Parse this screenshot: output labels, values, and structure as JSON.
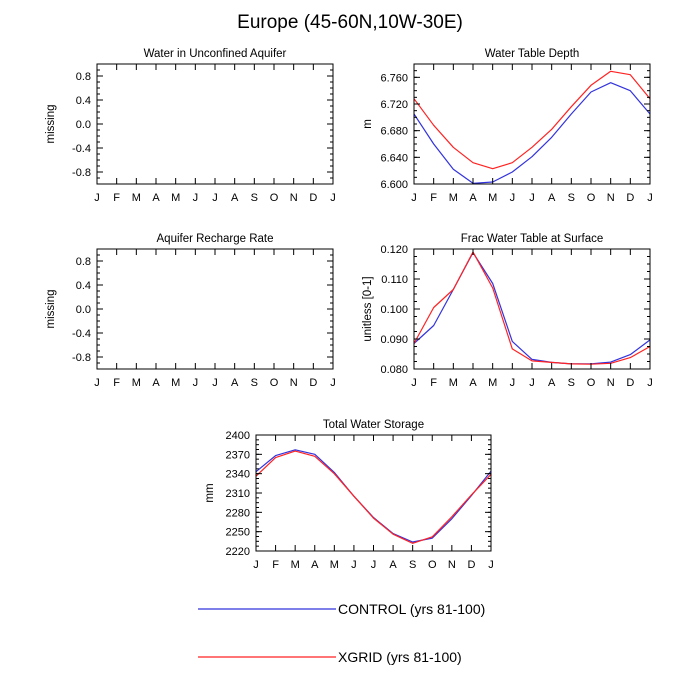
{
  "figure_title": "Europe (45-60N,10W-30E)",
  "colors": {
    "control": "#3333dd",
    "xgrid": "#ff2222",
    "axis": "#000000"
  },
  "legend": [
    {
      "key": "control",
      "label": "CONTROL (yrs 81-100)"
    },
    {
      "key": "xgrid",
      "label": "XGRID (yrs 81-100)"
    }
  ],
  "chart_data": [
    {
      "id": "aquifer-water",
      "type": "line",
      "title": "Water in Unconfined Aquifer",
      "ylabel": "missing",
      "categories": [
        "J",
        "F",
        "M",
        "A",
        "M",
        "J",
        "J",
        "A",
        "S",
        "O",
        "N",
        "D",
        "J"
      ],
      "ylim": [
        -1.0,
        1.0
      ],
      "yticks": [
        "0.8",
        "0.4",
        "0.0",
        "-0.4",
        "-0.8"
      ],
      "ytick_values": [
        0.8,
        0.4,
        0.0,
        -0.4,
        -0.8
      ],
      "series": []
    },
    {
      "id": "water-table-depth",
      "type": "line",
      "title": "Water Table Depth",
      "ylabel": "m",
      "categories": [
        "J",
        "F",
        "M",
        "A",
        "M",
        "J",
        "J",
        "A",
        "S",
        "O",
        "N",
        "D",
        "J"
      ],
      "ylim": [
        6.6,
        6.78
      ],
      "yticks": [
        "6.760",
        "6.720",
        "6.680",
        "6.640",
        "6.600"
      ],
      "ytick_values": [
        6.76,
        6.72,
        6.68,
        6.64,
        6.6
      ],
      "series": [
        {
          "name": "CONTROL",
          "color_key": "control",
          "values": [
            6.705,
            6.66,
            6.622,
            6.601,
            6.603,
            6.618,
            6.641,
            6.67,
            6.705,
            6.738,
            6.752,
            6.74,
            6.705
          ]
        },
        {
          "name": "XGRID",
          "color_key": "xgrid",
          "values": [
            6.728,
            6.688,
            6.655,
            6.632,
            6.623,
            6.632,
            6.655,
            6.682,
            6.716,
            6.748,
            6.769,
            6.764,
            6.728
          ]
        }
      ]
    },
    {
      "id": "aquifer-recharge",
      "type": "line",
      "title": "Aquifer Recharge Rate",
      "ylabel": "missing",
      "categories": [
        "J",
        "F",
        "M",
        "A",
        "M",
        "J",
        "J",
        "A",
        "S",
        "O",
        "N",
        "D",
        "J"
      ],
      "ylim": [
        -1.0,
        1.0
      ],
      "yticks": [
        "0.8",
        "0.4",
        "0.0",
        "-0.4",
        "-0.8"
      ],
      "ytick_values": [
        0.8,
        0.4,
        0.0,
        -0.4,
        -0.8
      ],
      "series": []
    },
    {
      "id": "frac-water-table",
      "type": "line",
      "title": "Frac Water Table at Surface",
      "ylabel": "unitless [0-1]",
      "categories": [
        "J",
        "F",
        "M",
        "A",
        "M",
        "J",
        "J",
        "A",
        "S",
        "O",
        "N",
        "D",
        "J"
      ],
      "ylim": [
        0.08,
        0.12
      ],
      "yticks": [
        "0.120",
        "0.110",
        "0.100",
        "0.090",
        "0.080"
      ],
      "ytick_values": [
        0.12,
        0.11,
        0.1,
        0.09,
        0.08
      ],
      "series": [
        {
          "name": "CONTROL",
          "color_key": "control",
          "values": [
            0.0885,
            0.0945,
            0.1065,
            0.1188,
            0.1085,
            0.0892,
            0.0832,
            0.0822,
            0.0817,
            0.0817,
            0.0823,
            0.0848,
            0.0897
          ]
        },
        {
          "name": "XGRID",
          "color_key": "xgrid",
          "values": [
            0.0885,
            0.1005,
            0.1065,
            0.119,
            0.107,
            0.0867,
            0.0827,
            0.0822,
            0.0817,
            0.0816,
            0.0819,
            0.0838,
            0.0875
          ]
        }
      ]
    },
    {
      "id": "total-water-storage",
      "type": "line",
      "title": "Total Water Storage",
      "ylabel": "mm",
      "categories": [
        "J",
        "F",
        "M",
        "A",
        "M",
        "J",
        "J",
        "A",
        "S",
        "O",
        "N",
        "D",
        "J"
      ],
      "ylim": [
        2220,
        2400
      ],
      "yticks": [
        "2400",
        "2370",
        "2340",
        "2310",
        "2280",
        "2250",
        "2220"
      ],
      "ytick_values": [
        2400,
        2370,
        2340,
        2310,
        2280,
        2250,
        2220
      ],
      "series": [
        {
          "name": "CONTROL",
          "color_key": "control",
          "values": [
            2343,
            2368,
            2377,
            2370,
            2342,
            2305,
            2272,
            2247,
            2234,
            2240,
            2270,
            2306,
            2344
          ]
        },
        {
          "name": "XGRID",
          "color_key": "xgrid",
          "values": [
            2336,
            2365,
            2375,
            2367,
            2340,
            2305,
            2271,
            2246,
            2232,
            2242,
            2273,
            2307,
            2339
          ]
        }
      ]
    }
  ]
}
